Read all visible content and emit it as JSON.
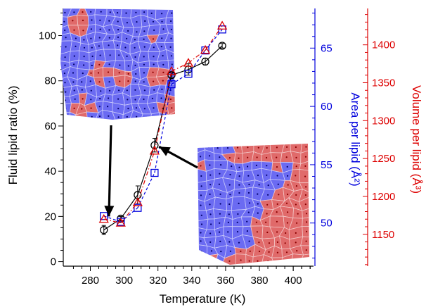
{
  "chart_data": {
    "type": "line",
    "xlabel": "Temperature (K)",
    "ylabel_left": "Fluid lipid ratio (%)",
    "ylabel_mid": "Area per lipid (Å²)",
    "ylabel_right": "Volume per lipid (Å³)",
    "xlim": [
      264,
      412
    ],
    "ylim_left": [
      -2,
      112
    ],
    "ylim_mid": [
      46.3,
      68.4
    ],
    "ylim_right": [
      1108,
      1448
    ],
    "x_ticks": [
      280,
      300,
      320,
      340,
      360,
      380,
      400
    ],
    "y_ticks_left": [
      0,
      20,
      40,
      60,
      80,
      100
    ],
    "y_ticks_mid": [
      50,
      55,
      60,
      65
    ],
    "y_ticks_right": [
      1150,
      1200,
      1250,
      1300,
      1350,
      1400
    ],
    "series": [
      {
        "axis": "left",
        "color": "#000000",
        "marker": "circle",
        "line": "solid",
        "x": [
          288,
          298,
          308,
          318,
          328,
          338,
          348,
          358
        ],
        "y": [
          14,
          19,
          29.5,
          51.5,
          82.5,
          85,
          88.5,
          95.5
        ],
        "err": [
          2,
          1,
          4,
          3,
          1,
          2.5,
          1.5,
          1
        ]
      },
      {
        "axis": "mid",
        "color": "#0000dd",
        "marker": "square",
        "line": "dashed",
        "x": [
          288,
          298,
          308,
          318,
          328,
          338,
          348,
          358
        ],
        "y": [
          50.6,
          50.1,
          51.3,
          54.3,
          61.9,
          62.8,
          64.8,
          66.6
        ]
      },
      {
        "axis": "right",
        "color": "#dd0000",
        "marker": "triangle",
        "line": "dashdot",
        "x": [
          288,
          298,
          308,
          318,
          328,
          338,
          348,
          358
        ],
        "y": [
          1170,
          1165,
          1192,
          1260,
          1365,
          1376,
          1393,
          1425
        ]
      }
    ],
    "arrows": [
      {
        "from": "top-left inset",
        "to_x": 291,
        "to_y": 20
      },
      {
        "from": "bottom-right inset",
        "to_x": 319,
        "to_y": 49
      }
    ],
    "colors": {
      "fluid": "#e06a6a",
      "gel": "#6b6bf2"
    },
    "insets": [
      {
        "position": "top-left",
        "fluid_fraction": 0.15
      },
      {
        "position": "bottom-right",
        "fluid_fraction": 0.6
      }
    ]
  }
}
